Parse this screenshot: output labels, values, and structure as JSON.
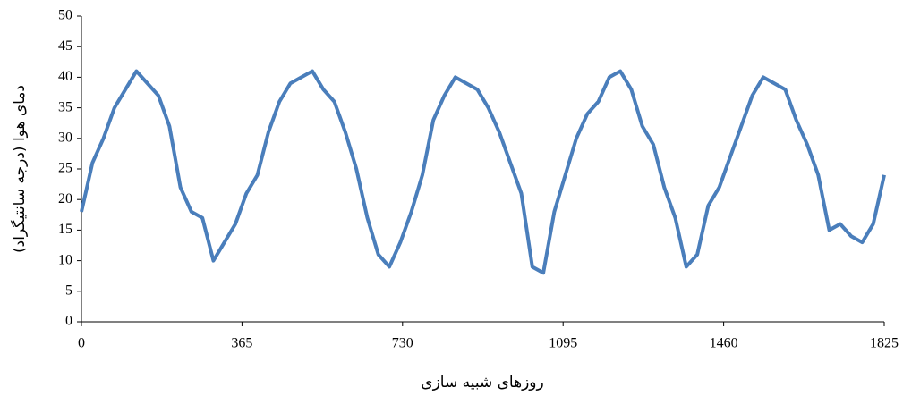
{
  "chart_data": {
    "type": "line",
    "x_label": "روزهای شبیه سازی",
    "y_label": "دمای هوا (درجه سانتیگراد)",
    "x": [
      0,
      25,
      50,
      75,
      100,
      125,
      150,
      175,
      200,
      225,
      250,
      275,
      300,
      325,
      350,
      375,
      400,
      425,
      450,
      475,
      500,
      525,
      550,
      575,
      600,
      625,
      650,
      675,
      700,
      725,
      750,
      775,
      800,
      825,
      850,
      875,
      900,
      925,
      950,
      975,
      1000,
      1025,
      1050,
      1075,
      1100,
      1125,
      1150,
      1175,
      1200,
      1225,
      1250,
      1275,
      1300,
      1325,
      1350,
      1375,
      1400,
      1425,
      1450,
      1475,
      1500,
      1525,
      1550,
      1575,
      1600,
      1625,
      1650,
      1675,
      1700,
      1725,
      1750,
      1775,
      1800,
      1825
    ],
    "series": [
      {
        "color": "#4a7ebb",
        "values": [
          18,
          26,
          30,
          35,
          38,
          41,
          39,
          37,
          32,
          22,
          18,
          17,
          10,
          13,
          16,
          21,
          24,
          31,
          36,
          39,
          40,
          41,
          38,
          36,
          31,
          25,
          17,
          11,
          9,
          13,
          18,
          24,
          33,
          37,
          40,
          39,
          38,
          35,
          31,
          26,
          21,
          9,
          8,
          18,
          24,
          30,
          34,
          36,
          40,
          41,
          38,
          32,
          29,
          22,
          17,
          9,
          11,
          19,
          22,
          27,
          32,
          37,
          40,
          39,
          38,
          33,
          29,
          24,
          15,
          16,
          14,
          13,
          16,
          24
        ]
      }
    ],
    "xlim": [
      0,
      1825
    ],
    "xticks": [
      0,
      365,
      730,
      1095,
      1460,
      1825
    ],
    "ylim": [
      0,
      50
    ],
    "yticks": [
      0,
      5,
      10,
      15,
      20,
      25,
      30,
      35,
      40,
      45,
      50
    ]
  }
}
